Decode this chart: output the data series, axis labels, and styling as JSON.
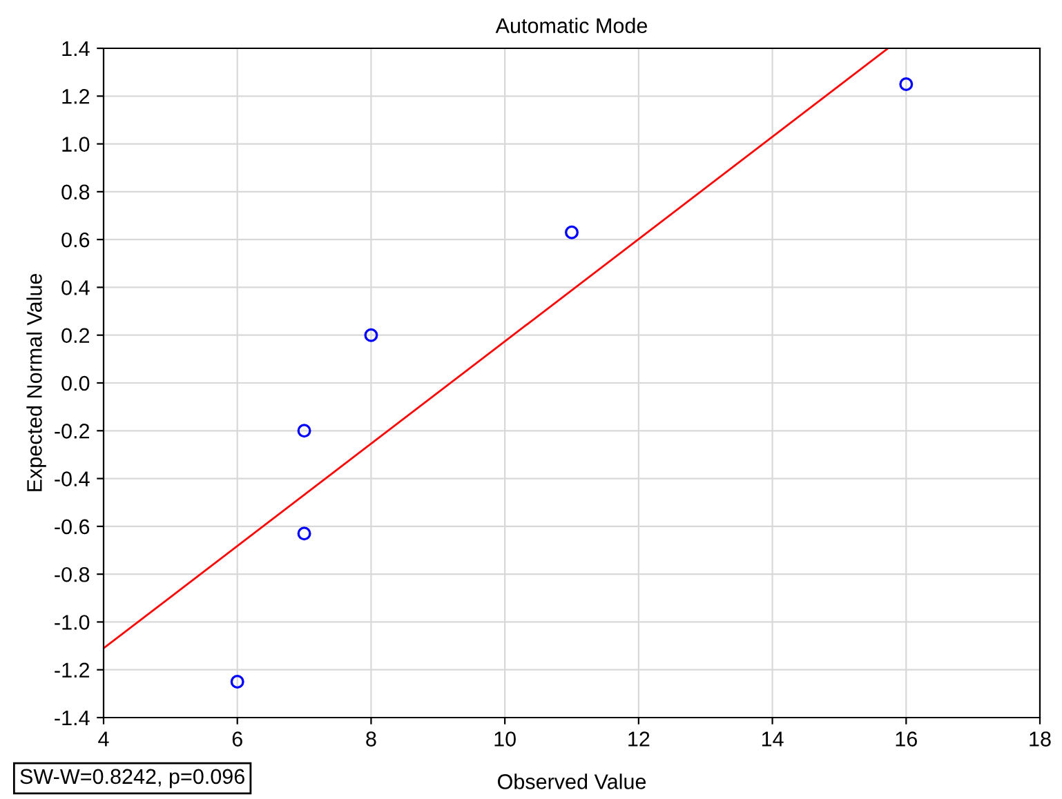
{
  "chart_data": {
    "type": "scatter",
    "title": "Automatic Mode",
    "xlabel": "Observed Value",
    "ylabel": "Expected Normal Value",
    "series": [
      {
        "color": "#0000ff",
        "marker": "circle",
        "x": [
          6,
          7,
          7,
          8,
          11,
          16
        ],
        "values": [
          -1.25,
          -0.63,
          -0.2,
          0.2,
          0.63,
          1.25
        ]
      },
      {
        "type": "line",
        "color": "#ff0000",
        "x": [
          4,
          15.73
        ],
        "values": [
          -1.11,
          1.4
        ]
      }
    ],
    "xlim": [
      4,
      18
    ],
    "xticks": [
      4,
      6,
      8,
      10,
      12,
      14,
      16,
      18
    ],
    "ylim": [
      -1.4,
      1.4
    ],
    "yticks": [
      -1.4,
      -1.2,
      {
        "value": -1,
        "label": "-1.0"
      },
      -0.8,
      -0.6,
      -0.4,
      -0.2,
      {
        "value": 0,
        "label": "0.0"
      },
      0.2,
      0.4,
      0.6,
      0.8,
      {
        "value": 1,
        "label": "1.0"
      },
      1.2,
      1.4
    ],
    "grid": true,
    "annotations": [
      "SW-W=0.8242, p=0.096"
    ]
  }
}
